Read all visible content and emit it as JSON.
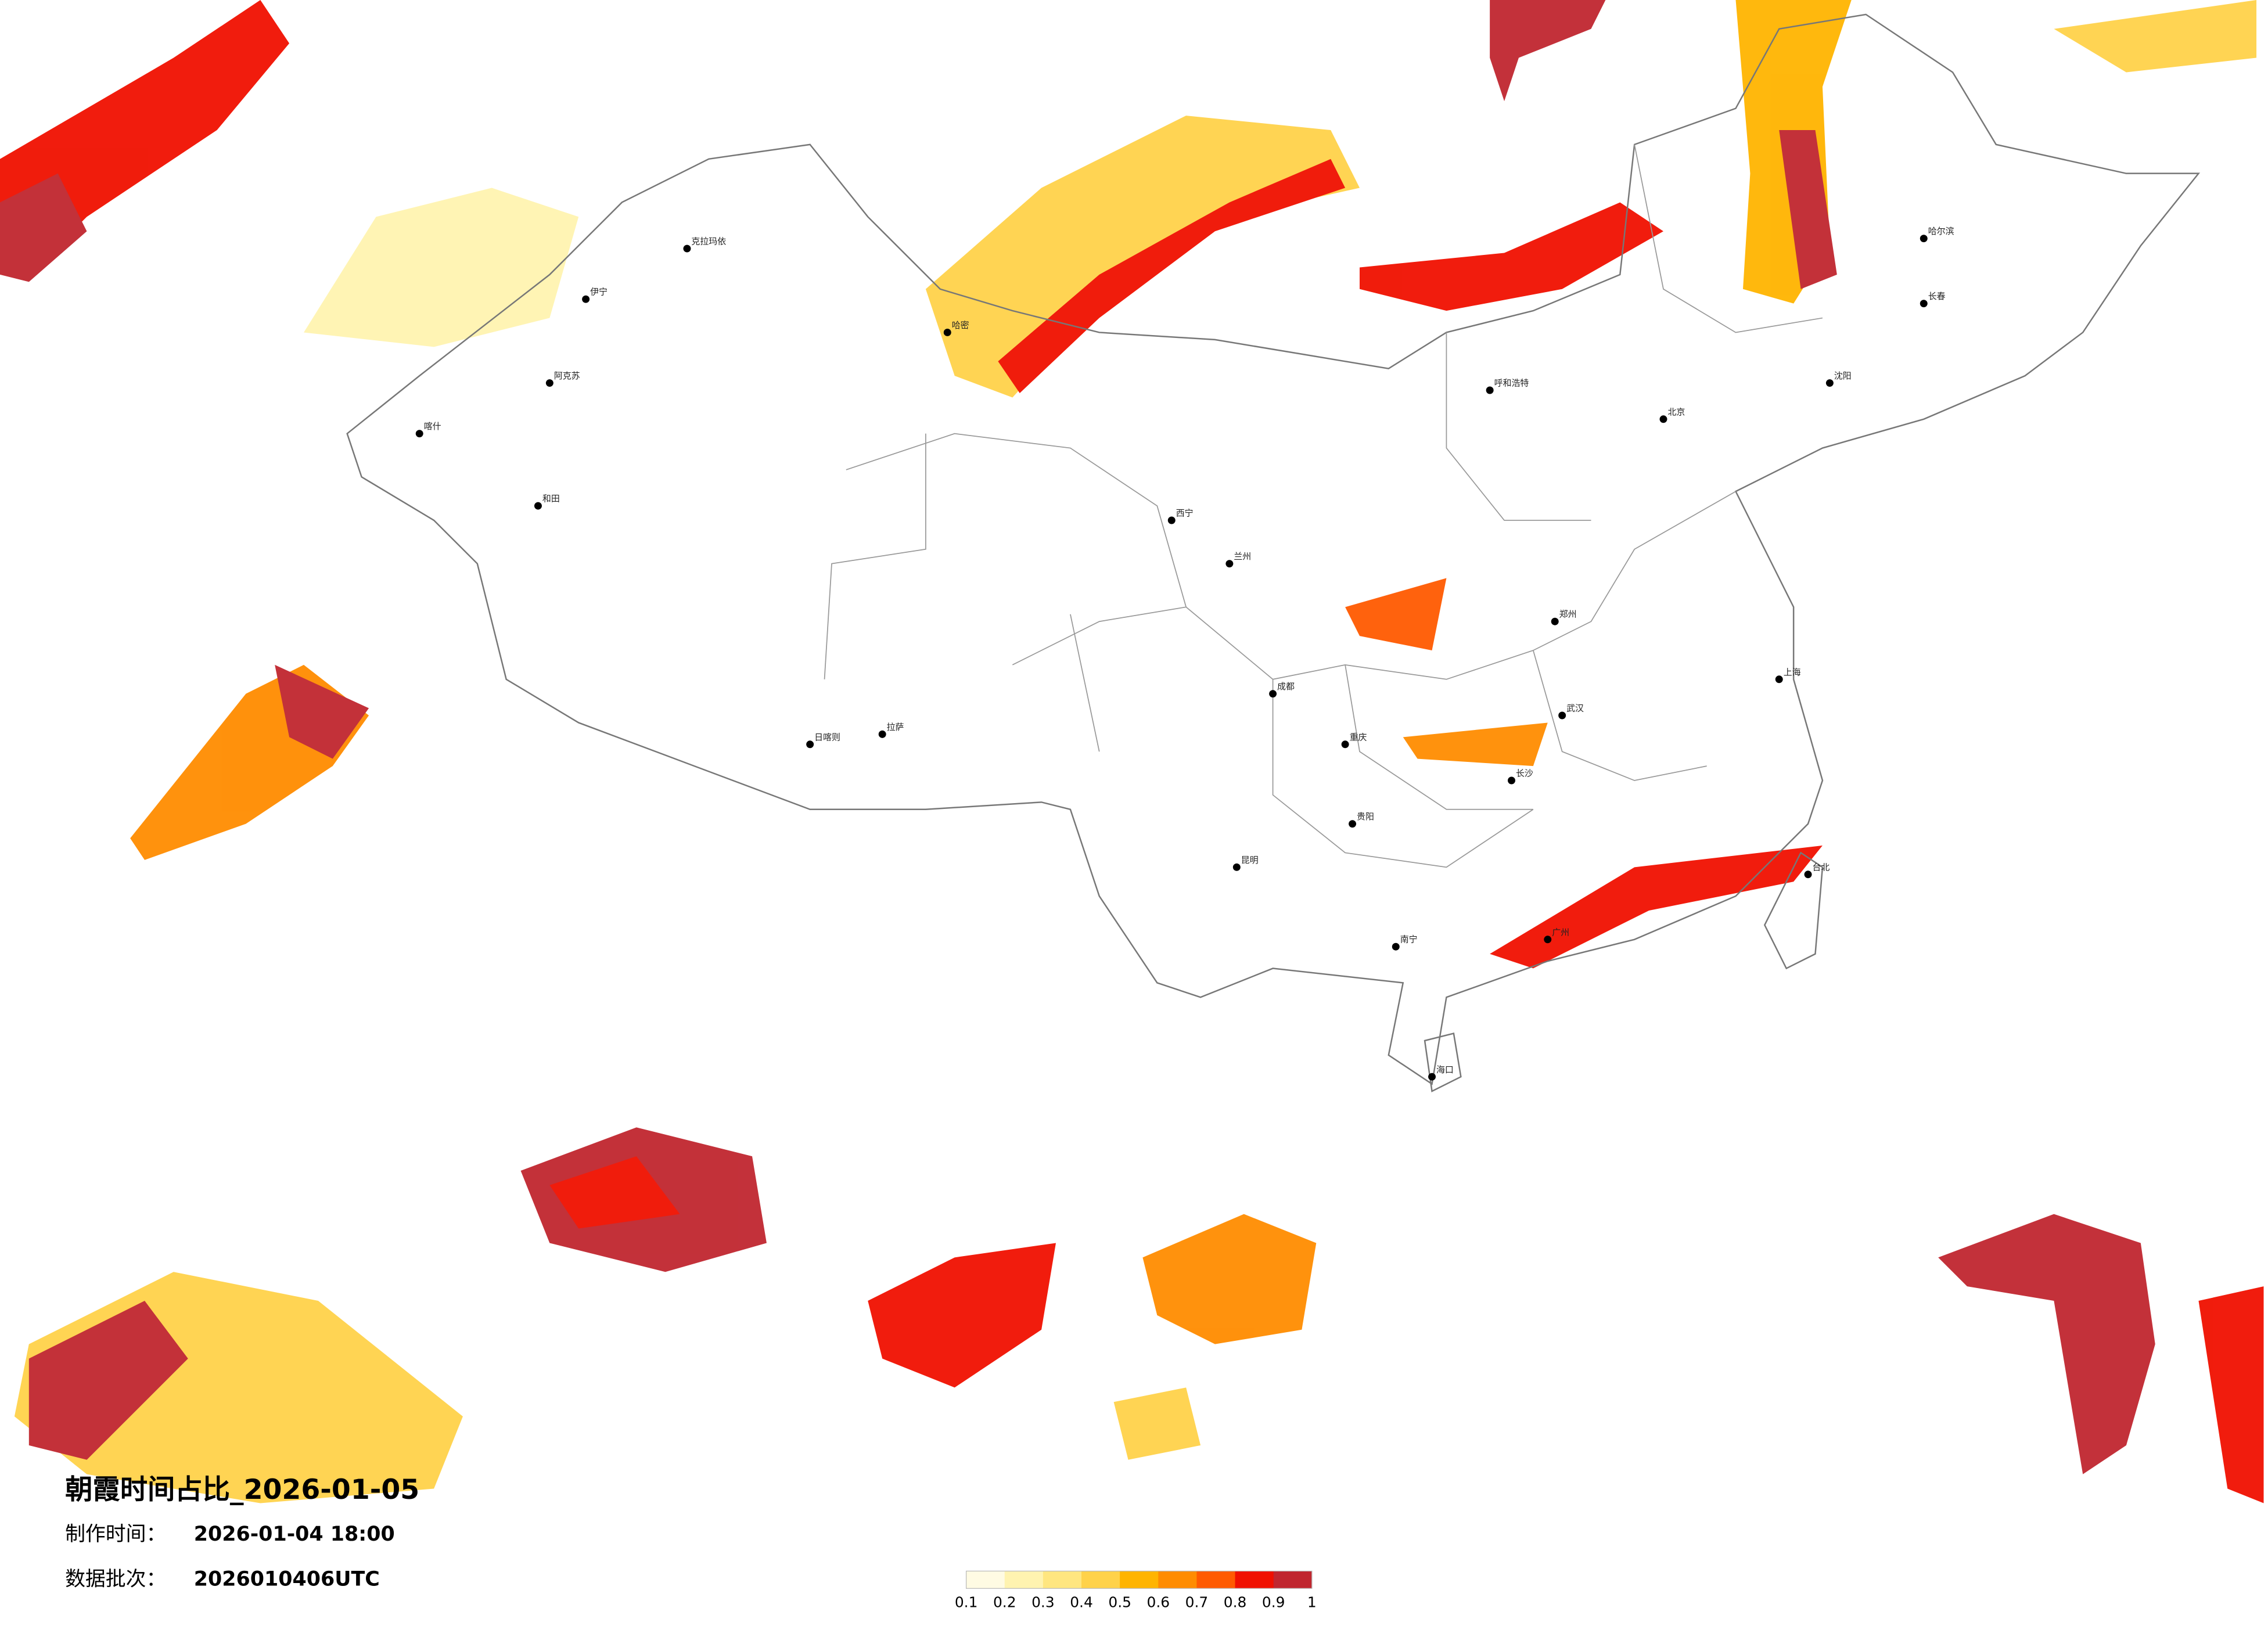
{
  "map": {
    "title": "朝霞时间占比_2026-01-05",
    "made_label": "制作时间：",
    "made_time": "2026-01-04 18:00",
    "batch_label": "数据批次：",
    "batch": "2026010406UTC",
    "legend": {
      "ticks": [
        0.1,
        0.2,
        0.3,
        0.4,
        0.5,
        0.6,
        0.7,
        0.8,
        0.9,
        1
      ],
      "colors": [
        "#fffbe3",
        "#fff3b0",
        "#ffe680",
        "#ffd24a",
        "#ffb400",
        "#ff8c00",
        "#ff5a00",
        "#f01000",
        "#c0262f"
      ]
    },
    "cities": [
      "克拉玛依",
      "伊宁",
      "阿克苏",
      "喀什",
      "和田",
      "哈密",
      "日喀则",
      "拉萨",
      "西宁",
      "兰州",
      "成都",
      "重庆",
      "昆明",
      "贵阳",
      "南宁",
      "广州",
      "长沙",
      "武汉",
      "郑州",
      "北京",
      "上海",
      "哈尔滨",
      "长春",
      "沈阳",
      "呼和浩特",
      "台北",
      "海口"
    ]
  }
}
